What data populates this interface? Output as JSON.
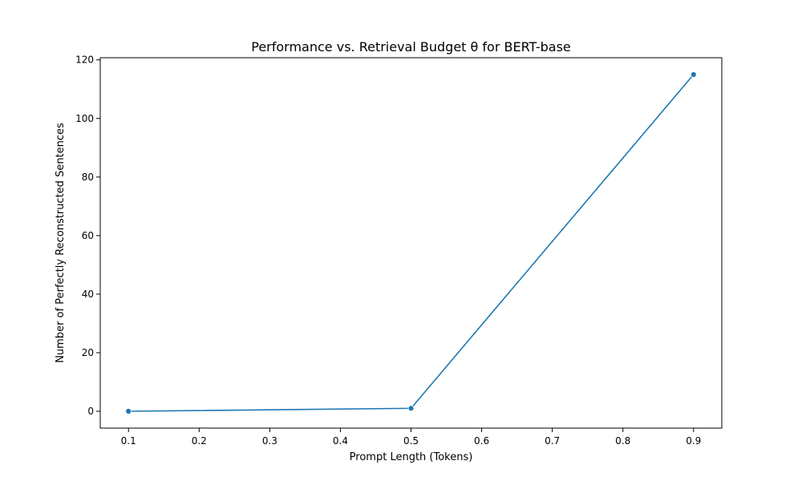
{
  "chart_data": {
    "type": "line",
    "title": "Performance vs. Retrieval Budget θ for BERT-base",
    "xlabel": "Prompt Length (Tokens)",
    "ylabel": "Number of Perfectly Reconstructed Sentences",
    "x": [
      0.1,
      0.5,
      0.9
    ],
    "series": [
      {
        "name": "",
        "values": [
          0,
          1,
          115
        ]
      }
    ],
    "xlim": [
      0.06,
      0.94
    ],
    "ylim": [
      -5.75,
      120.75
    ],
    "xticks": [
      0.1,
      0.2,
      0.3,
      0.4,
      0.5,
      0.6,
      0.7,
      0.8,
      0.9
    ],
    "xtick_labels": [
      "0.1",
      "0.2",
      "0.3",
      "0.4",
      "0.5",
      "0.6",
      "0.7",
      "0.8",
      "0.9"
    ],
    "yticks": [
      0,
      20,
      40,
      60,
      80,
      100,
      120
    ],
    "ytick_labels": [
      "0",
      "20",
      "40",
      "60",
      "80",
      "100",
      "120"
    ],
    "grid": false,
    "legend": "none",
    "markers": true,
    "colors": {
      "line": "#1f77b4",
      "axis": "#000000",
      "background": "#ffffff"
    }
  }
}
